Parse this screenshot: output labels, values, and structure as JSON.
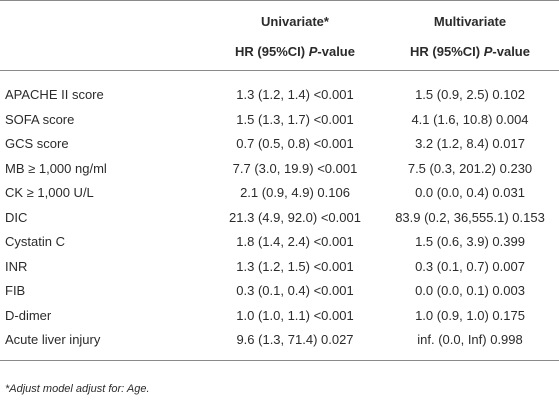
{
  "table": {
    "groups": [
      "Univariate*",
      "Multivariate"
    ],
    "subheader": {
      "label": "HR (95%CI)",
      "p": "P",
      "suffix": "-value"
    },
    "rows": [
      [
        "APACHE II score",
        "1.3 (1.2, 1.4) <0.001",
        "1.5 (0.9, 2.5) 0.102"
      ],
      [
        "SOFA score",
        "1.5 (1.3, 1.7) <0.001",
        "4.1 (1.6, 10.8) 0.004"
      ],
      [
        "GCS score",
        "0.7 (0.5, 0.8) <0.001",
        "3.2 (1.2, 8.4) 0.017"
      ],
      [
        "MB ≥ 1,000 ng/ml",
        "7.7 (3.0, 19.9) <0.001",
        "7.5 (0.3, 201.2) 0.230"
      ],
      [
        "CK ≥ 1,000 U/L",
        "2.1 (0.9, 4.9) 0.106",
        "0.0 (0.0, 0.4) 0.031"
      ],
      [
        "DIC",
        "21.3 (4.9, 92.0) <0.001",
        "83.9 (0.2, 36,555.1) 0.153"
      ],
      [
        "Cystatin C",
        "1.8 (1.4, 2.4) <0.001",
        "1.5 (0.6, 3.9) 0.399"
      ],
      [
        "INR",
        "1.3 (1.2, 1.5) <0.001",
        "0.3 (0.1, 0.7) 0.007"
      ],
      [
        "FIB",
        "0.3 (0.1, 0.4) <0.001",
        "0.0 (0.0, 0.1) 0.003"
      ],
      [
        "D-dimer",
        "1.0 (1.0, 1.1) <0.001",
        "1.0 (0.9, 1.0) 0.175"
      ],
      [
        "Acute liver injury",
        "9.6 (1.3, 71.4) 0.027",
        "inf. (0.0, Inf) 0.998"
      ]
    ],
    "footnote": "*Adjust model adjust for: Age."
  }
}
